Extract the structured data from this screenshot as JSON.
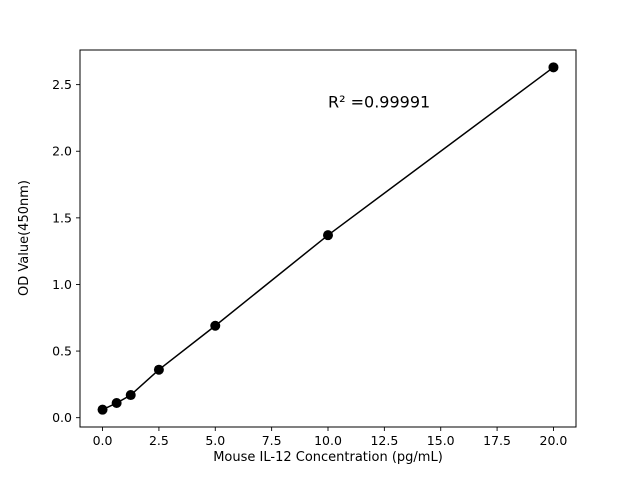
{
  "chart_data": {
    "type": "scatter",
    "title": "",
    "xlabel": "Mouse IL-12 Concentration (pg/mL)",
    "ylabel": "OD Value(450nm)",
    "annotation": "R² =0.99991",
    "x": [
      0,
      0.625,
      1.25,
      2.5,
      5,
      10,
      20
    ],
    "y": [
      0.06,
      0.11,
      0.17,
      0.36,
      0.69,
      1.37,
      2.63
    ],
    "xlim": [
      -1,
      21
    ],
    "ylim": [
      -0.07,
      2.76
    ],
    "xticks": [
      0.0,
      2.5,
      5.0,
      7.5,
      10.0,
      12.5,
      15.0,
      17.5,
      20.0
    ],
    "yticks": [
      0.0,
      0.5,
      1.0,
      1.5,
      2.0,
      2.5
    ],
    "line": true,
    "grid": false,
    "legend": false,
    "marker_color": "#000000",
    "line_color": "#000000",
    "annotation_pos": {
      "x": 10.0,
      "y": 2.33
    }
  }
}
